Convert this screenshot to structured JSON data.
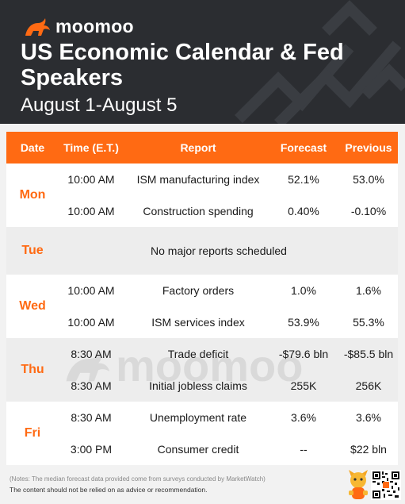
{
  "brand": {
    "name": "moomoo",
    "logo_icon": "bull-icon"
  },
  "header": {
    "title": "US Economic Calendar & Fed Speakers",
    "subtitle": "August 1-August 5"
  },
  "columns": {
    "date": "Date",
    "time": "Time (E.T.)",
    "report": "Report",
    "forecast": "Forecast",
    "previous": "Previous"
  },
  "days": [
    {
      "name": "Mon",
      "rows": [
        {
          "time": "10:00 AM",
          "report": "ISM manufacturing index",
          "forecast": "52.1%",
          "previous": "53.0%"
        },
        {
          "time": "10:00 AM",
          "report": "Construction spending",
          "forecast": "0.40%",
          "previous": "-0.10%"
        }
      ]
    },
    {
      "name": "Tue",
      "none": "No major reports scheduled"
    },
    {
      "name": "Wed",
      "rows": [
        {
          "time": "10:00 AM",
          "report": "Factory orders",
          "forecast": "1.0%",
          "previous": "1.6%"
        },
        {
          "time": "10:00 AM",
          "report": "ISM services index",
          "forecast": "53.9%",
          "previous": "55.3%"
        }
      ]
    },
    {
      "name": "Thu",
      "rows": [
        {
          "time": "8:30 AM",
          "report": "Trade deficit",
          "forecast": "-$79.6 bln",
          "previous": "-$85.5 bln"
        },
        {
          "time": "8:30 AM",
          "report": "Initial jobless claims",
          "forecast": "255K",
          "previous": "256K"
        }
      ]
    },
    {
      "name": "Fri",
      "rows": [
        {
          "time": "8:30 AM",
          "report": "Unemployment rate",
          "forecast": "3.6%",
          "previous": "3.6%"
        },
        {
          "time": "3:00 PM",
          "report": "Consumer credit",
          "forecast": "--",
          "previous": "$22 bln"
        }
      ]
    }
  ],
  "watermark": "moomoo",
  "footer": {
    "note": "(Notes: The median forecast data provided come from surveys conducted by MarketWatch)",
    "disclaimer": "The content should not be relied on as advice or recommendation."
  },
  "colors": {
    "accent": "#ff6a13",
    "header_bg": "#2b2d31",
    "row_alt": "#ededed"
  }
}
